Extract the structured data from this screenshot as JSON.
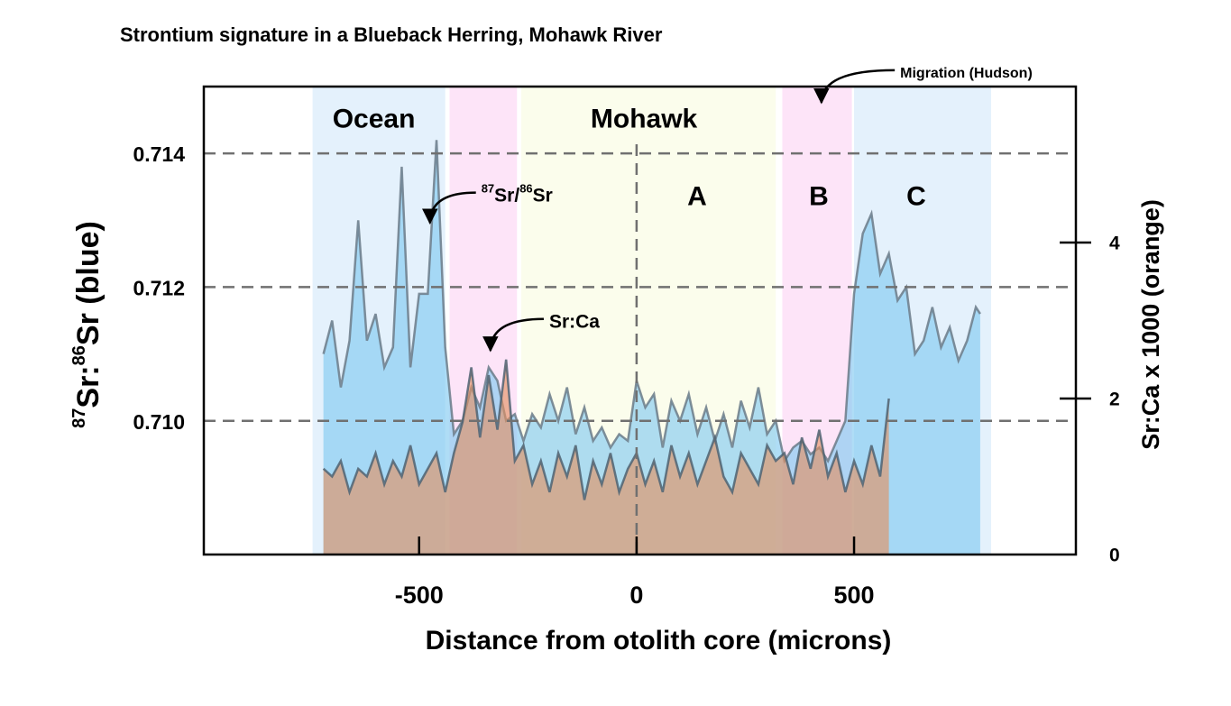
{
  "chart_data": {
    "type": "area",
    "title": "Strontium signature in a Blueback Herring, Mohawk River",
    "xlabel": "Distance from otolith core (microns)",
    "ylabel": [
      {
        "text": "87",
        "sup": true
      },
      {
        "text": "Sr:"
      },
      {
        "text": "86",
        "sup": true
      },
      {
        "text": "Sr (blue)"
      }
    ],
    "y2label": "Sr:Ca x 1000 (orange)",
    "xlim": [
      -995,
      1010
    ],
    "xticks": [
      -500,
      0,
      500
    ],
    "ylim": [
      0.708,
      0.715
    ],
    "yticks": [
      {
        "value": 0.71,
        "label": "0.710"
      },
      0.712,
      0.714
    ],
    "y2lim": [
      0,
      6
    ],
    "y2ticks": [
      0,
      2,
      4
    ],
    "grid": true,
    "vlines": [
      0
    ],
    "bands": [
      {
        "from": -745,
        "to": -440,
        "color": "#e4f1fc"
      },
      {
        "from": -430,
        "to": -275,
        "color": "#fde4f8"
      },
      {
        "from": -265,
        "to": 320,
        "color": "#fbfdec"
      },
      {
        "from": 335,
        "to": 495,
        "color": "#fde4f8"
      },
      {
        "from": 500,
        "to": 815,
        "color": "#e4f1fc"
      }
    ],
    "labels": [
      {
        "text": "Ocean",
        "x": -604,
        "y": 0.71449
      },
      {
        "text": "Mohawk",
        "x": 17,
        "y": 0.71449
      },
      {
        "text": "A",
        "x": 139,
        "y": 0.71333
      },
      {
        "text": "B",
        "x": 419,
        "y": 0.71333
      },
      {
        "text": "C",
        "x": 643,
        "y": 0.71333
      }
    ],
    "annotations": [
      {
        "text": [
          {
            "text": "87",
            "sup": true
          },
          {
            "text": "Sr/"
          },
          {
            "text": "86",
            "sup": true
          },
          {
            "text": "Sr"
          }
        ],
        "x": -357,
        "y": 0.71336,
        "ax": -475,
        "ay": 0.71296
      },
      {
        "text": [
          {
            "text": "Sr:Ca"
          }
        ],
        "x": -201,
        "y": 0.71147,
        "ax": -336,
        "ay": 0.71105
      },
      {
        "text": [
          {
            "text": "Migration (Hudson)"
          }
        ],
        "x": 606,
        "y": 0.71519,
        "ax": 425,
        "ay": 0.71476
      }
    ],
    "series": [
      {
        "name": "87Sr/86Sr",
        "color": "#7ec8f0",
        "stroke": "#6b7b88",
        "x": [
          -720,
          -700,
          -680,
          -660,
          -640,
          -620,
          -600,
          -580,
          -560,
          -540,
          -520,
          -500,
          -480,
          -460,
          -440,
          -420,
          -400,
          -380,
          -360,
          -340,
          -320,
          -300,
          -280,
          -260,
          -240,
          -220,
          -200,
          -180,
          -160,
          -140,
          -120,
          -100,
          -80,
          -60,
          -40,
          -20,
          0,
          20,
          40,
          60,
          80,
          100,
          120,
          140,
          160,
          180,
          200,
          220,
          240,
          260,
          280,
          300,
          320,
          340,
          360,
          380,
          400,
          420,
          440,
          460,
          480,
          500,
          520,
          540,
          560,
          580,
          600,
          620,
          640,
          660,
          680,
          700,
          720,
          740,
          760,
          780,
          790
        ],
        "values": [
          0.711,
          0.7115,
          0.7105,
          0.7112,
          0.713,
          0.7112,
          0.7116,
          0.7108,
          0.7111,
          0.7138,
          0.7108,
          0.7119,
          0.7119,
          0.7142,
          0.7111,
          0.7098,
          0.71,
          0.7105,
          0.7102,
          0.7108,
          0.7106,
          0.71,
          0.7101,
          0.7097,
          0.7101,
          0.7099,
          0.7104,
          0.71,
          0.7105,
          0.7098,
          0.7102,
          0.7097,
          0.7099,
          0.7096,
          0.7098,
          0.7097,
          0.7106,
          0.7102,
          0.7104,
          0.7096,
          0.7103,
          0.71,
          0.7104,
          0.7098,
          0.7102,
          0.7097,
          0.7101,
          0.7096,
          0.7103,
          0.7099,
          0.7105,
          0.7098,
          0.71,
          0.7094,
          0.7096,
          0.7097,
          0.7095,
          0.7096,
          0.7094,
          0.7097,
          0.71,
          0.7119,
          0.7128,
          0.7131,
          0.7122,
          0.7125,
          0.7118,
          0.712,
          0.711,
          0.7112,
          0.7117,
          0.7111,
          0.7114,
          0.7109,
          0.7112,
          0.7117,
          0.7116
        ]
      },
      {
        "name": "Sr:Ca",
        "color": "#e49060",
        "stroke": "#4f6372",
        "axis": "y2",
        "x": [
          -720,
          -700,
          -680,
          -660,
          -640,
          -620,
          -600,
          -580,
          -560,
          -540,
          -520,
          -500,
          -480,
          -460,
          -440,
          -420,
          -400,
          -380,
          -360,
          -340,
          -320,
          -300,
          -280,
          -260,
          -240,
          -220,
          -200,
          -180,
          -160,
          -140,
          -120,
          -100,
          -80,
          -60,
          -40,
          -20,
          0,
          20,
          40,
          60,
          80,
          100,
          120,
          140,
          160,
          180,
          200,
          220,
          240,
          260,
          280,
          300,
          320,
          340,
          360,
          380,
          400,
          420,
          440,
          460,
          480,
          500,
          520,
          540,
          560,
          580
        ],
        "values": [
          1.1,
          1.0,
          1.2,
          0.8,
          1.1,
          1.0,
          1.3,
          0.9,
          1.2,
          1.0,
          1.4,
          0.9,
          1.1,
          1.3,
          0.8,
          1.3,
          1.7,
          2.4,
          1.5,
          2.3,
          1.6,
          2.5,
          1.2,
          1.4,
          0.9,
          1.2,
          0.8,
          1.3,
          1.0,
          1.4,
          0.7,
          1.2,
          0.9,
          1.3,
          0.8,
          1.1,
          1.3,
          0.9,
          1.2,
          0.8,
          1.4,
          1.0,
          1.3,
          0.9,
          1.2,
          1.5,
          1.0,
          0.8,
          1.3,
          1.1,
          0.9,
          1.4,
          1.2,
          1.3,
          0.9,
          1.5,
          1.1,
          1.6,
          1.0,
          1.3,
          0.8,
          1.2,
          0.9,
          1.4,
          1.0,
          2.0
        ]
      }
    ]
  }
}
